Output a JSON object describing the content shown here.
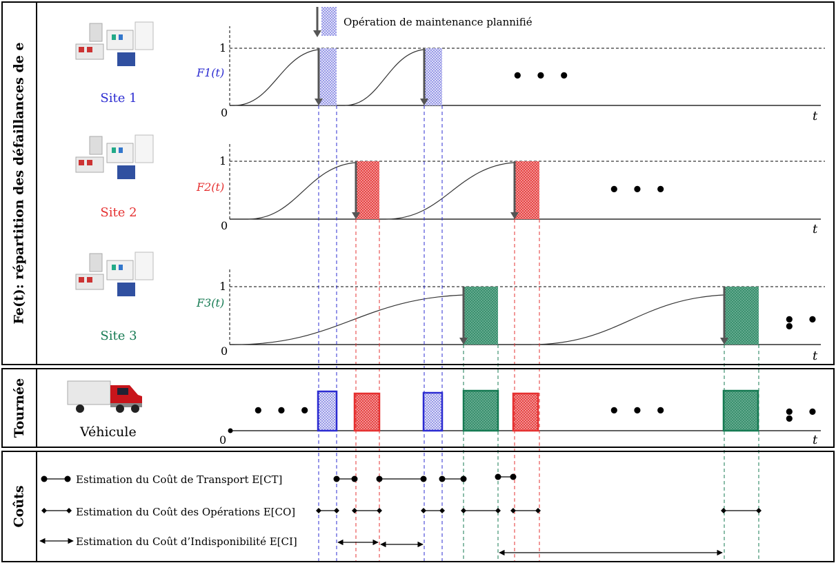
{
  "left_labels": {
    "distribution": "Fe(t): répartition des défaillances de e",
    "tour": "Tournée",
    "costs": "Coûts"
  },
  "annotation": "Opération de maintenance plannifié",
  "sites": [
    {
      "name": "Site 1",
      "func": "F1(t)",
      "color": "#2b2bd1"
    },
    {
      "name": "Site 2",
      "func": "F2(t)",
      "color": "#e53030"
    },
    {
      "name": "Site 3",
      "func": "F3(t)",
      "color": "#157a52"
    }
  ],
  "axis": {
    "one": "1",
    "zero": "0",
    "t": "t"
  },
  "vehicle_label": "Véhicule",
  "ellipsis": "• • •",
  "legend": {
    "transport": "Estimation du Coût de Transport  E[CT]",
    "operations": "Estimation du Coût des Opérations  E[CO]",
    "unavailability": "Estimation du Coût d’Indisponibilité E[CI]"
  },
  "colors": {
    "site1": "#2b2bd1",
    "site2": "#e53030",
    "site3": "#157a52"
  }
}
